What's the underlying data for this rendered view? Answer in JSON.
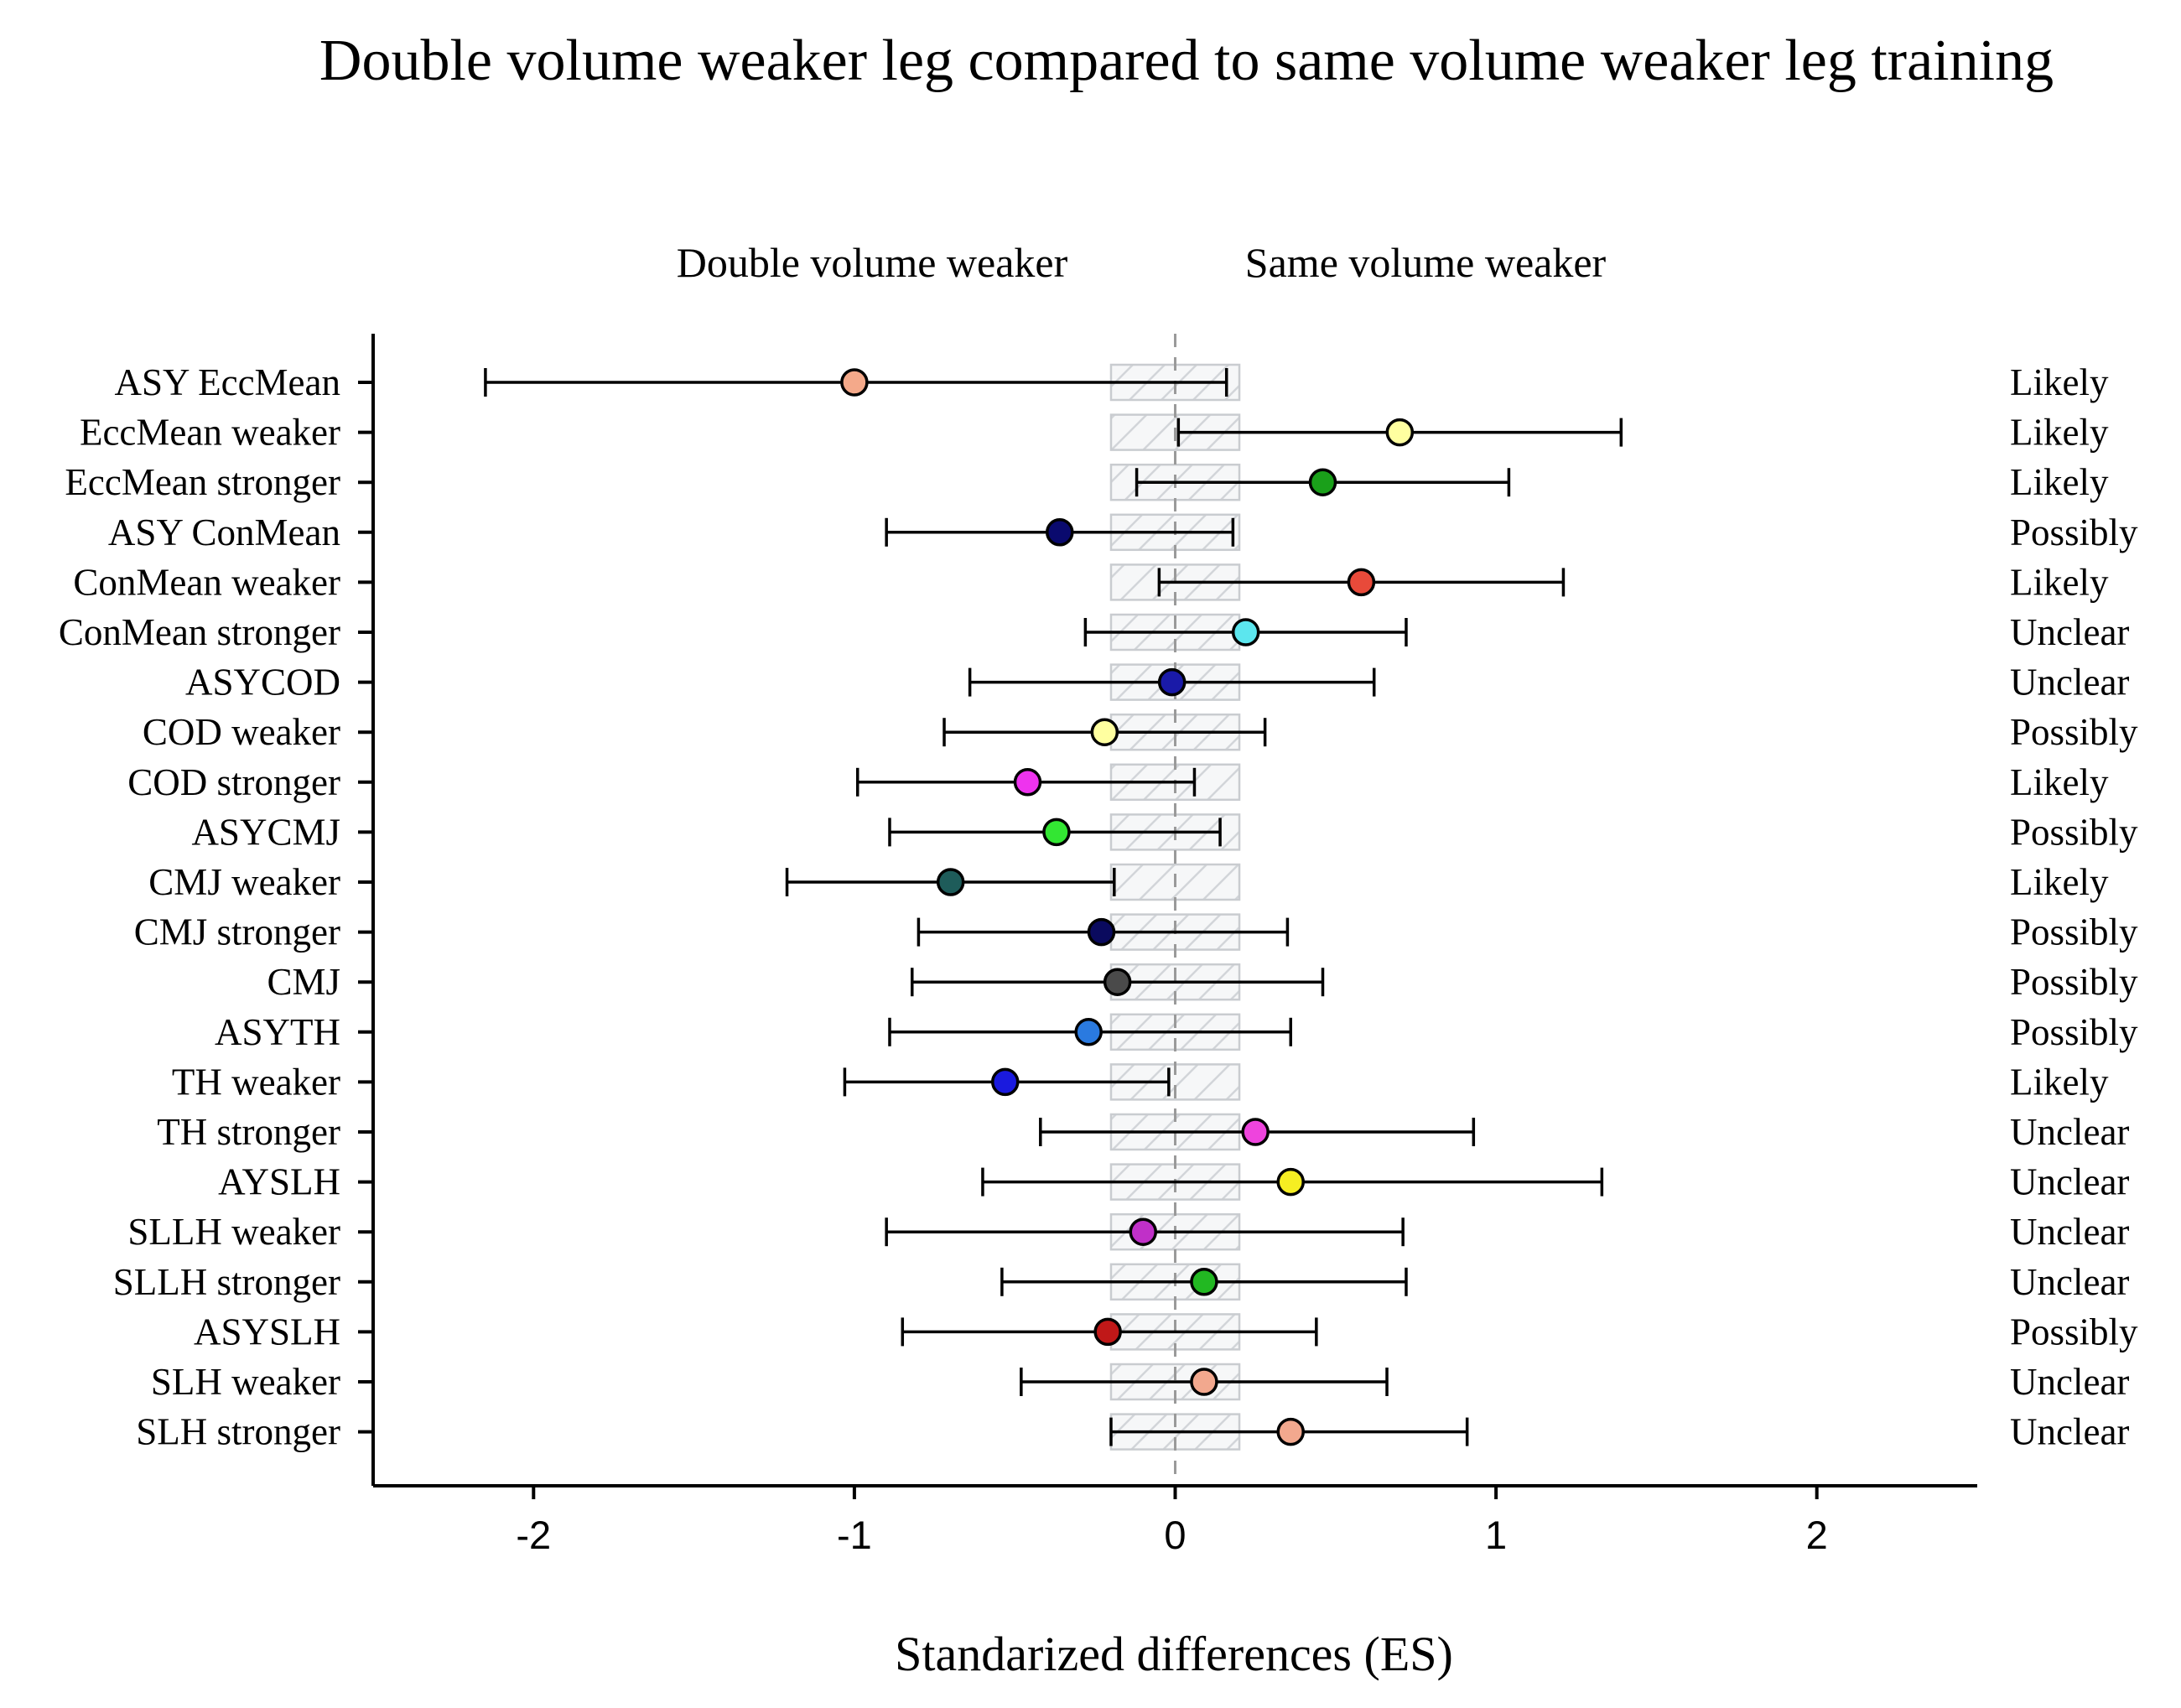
{
  "chart_data": {
    "type": "forest",
    "title": "Double volume weaker leg compared to same volume weaker leg training",
    "left_direction_label": "Double volume weaker",
    "right_direction_label": "Same volume weaker",
    "xlabel": "Standarized differences (ES)",
    "xlim": [
      -2.5,
      2.5
    ],
    "xticks": [
      -2,
      -1,
      0,
      1,
      2
    ],
    "xtick_labels": [
      "-2",
      "-1",
      "0",
      "1",
      "2"
    ],
    "trivial_region": [
      -0.2,
      0.2
    ],
    "reference_line": 0,
    "rows": [
      {
        "label": "ASY EccMean",
        "es": -1.0,
        "lower": -2.15,
        "upper": 0.16,
        "inference": "Likely",
        "color": "#F4A98A"
      },
      {
        "label": "EccMean weaker",
        "es": 0.7,
        "lower": 0.01,
        "upper": 1.39,
        "inference": "Likely",
        "color": "#FFFFA0"
      },
      {
        "label": "EccMean stronger",
        "es": 0.46,
        "lower": -0.12,
        "upper": 1.04,
        "inference": "Likely",
        "color": "#1AA01A"
      },
      {
        "label": "ASY ConMean",
        "es": -0.36,
        "lower": -0.9,
        "upper": 0.18,
        "inference": "Possibly",
        "color": "#0A0A6E"
      },
      {
        "label": "ConMean weaker",
        "es": 0.58,
        "lower": -0.05,
        "upper": 1.21,
        "inference": "Likely",
        "color": "#E84A3A"
      },
      {
        "label": "ConMean stronger",
        "es": 0.22,
        "lower": -0.28,
        "upper": 0.72,
        "inference": "Unclear",
        "color": "#5CE6EE"
      },
      {
        "label": "ASYCOD",
        "es": -0.01,
        "lower": -0.64,
        "upper": 0.62,
        "inference": "Unclear",
        "color": "#1A1AA8"
      },
      {
        "label": "COD weaker",
        "es": -0.22,
        "lower": -0.72,
        "upper": 0.28,
        "inference": "Possibly",
        "color": "#FFFFA0"
      },
      {
        "label": "COD stronger",
        "es": -0.46,
        "lower": -0.99,
        "upper": 0.06,
        "inference": "Likely",
        "color": "#EE33EE"
      },
      {
        "label": "ASYCMJ",
        "es": -0.37,
        "lower": -0.89,
        "upper": 0.14,
        "inference": "Possibly",
        "color": "#33E633"
      },
      {
        "label": "CMJ weaker",
        "es": -0.7,
        "lower": -1.21,
        "upper": -0.19,
        "inference": "Likely",
        "color": "#1E5C5A"
      },
      {
        "label": "CMJ stronger",
        "es": -0.23,
        "lower": -0.8,
        "upper": 0.35,
        "inference": "Possibly",
        "color": "#0A0A5E"
      },
      {
        "label": "CMJ",
        "es": -0.18,
        "lower": -0.82,
        "upper": 0.46,
        "inference": "Possibly",
        "color": "#4A4A4A"
      },
      {
        "label": "ASYTH",
        "es": -0.27,
        "lower": -0.89,
        "upper": 0.36,
        "inference": "Possibly",
        "color": "#2A7AE0"
      },
      {
        "label": "TH weaker",
        "es": -0.53,
        "lower": -1.03,
        "upper": -0.02,
        "inference": "Likely",
        "color": "#1A1ADE"
      },
      {
        "label": "TH stronger",
        "es": 0.25,
        "lower": -0.42,
        "upper": 0.93,
        "inference": "Unclear",
        "color": "#EE44DD"
      },
      {
        "label": "AYSLH",
        "es": 0.36,
        "lower": -0.6,
        "upper": 1.33,
        "inference": "Unclear",
        "color": "#F6EE22"
      },
      {
        "label": "SLLH weaker",
        "es": -0.1,
        "lower": -0.9,
        "upper": 0.71,
        "inference": "Unclear",
        "color": "#C030C8"
      },
      {
        "label": "SLLH stronger",
        "es": 0.09,
        "lower": -0.54,
        "upper": 0.72,
        "inference": "Unclear",
        "color": "#22B822"
      },
      {
        "label": "ASYSLH",
        "es": -0.21,
        "lower": -0.85,
        "upper": 0.44,
        "inference": "Possibly",
        "color": "#C01818"
      },
      {
        "label": "SLH weaker",
        "es": 0.09,
        "lower": -0.48,
        "upper": 0.66,
        "inference": "Unclear",
        "color": "#F2A88E"
      },
      {
        "label": "SLH stronger",
        "es": 0.36,
        "lower": -0.2,
        "upper": 0.91,
        "inference": "Unclear",
        "color": "#F2A88E"
      }
    ]
  }
}
